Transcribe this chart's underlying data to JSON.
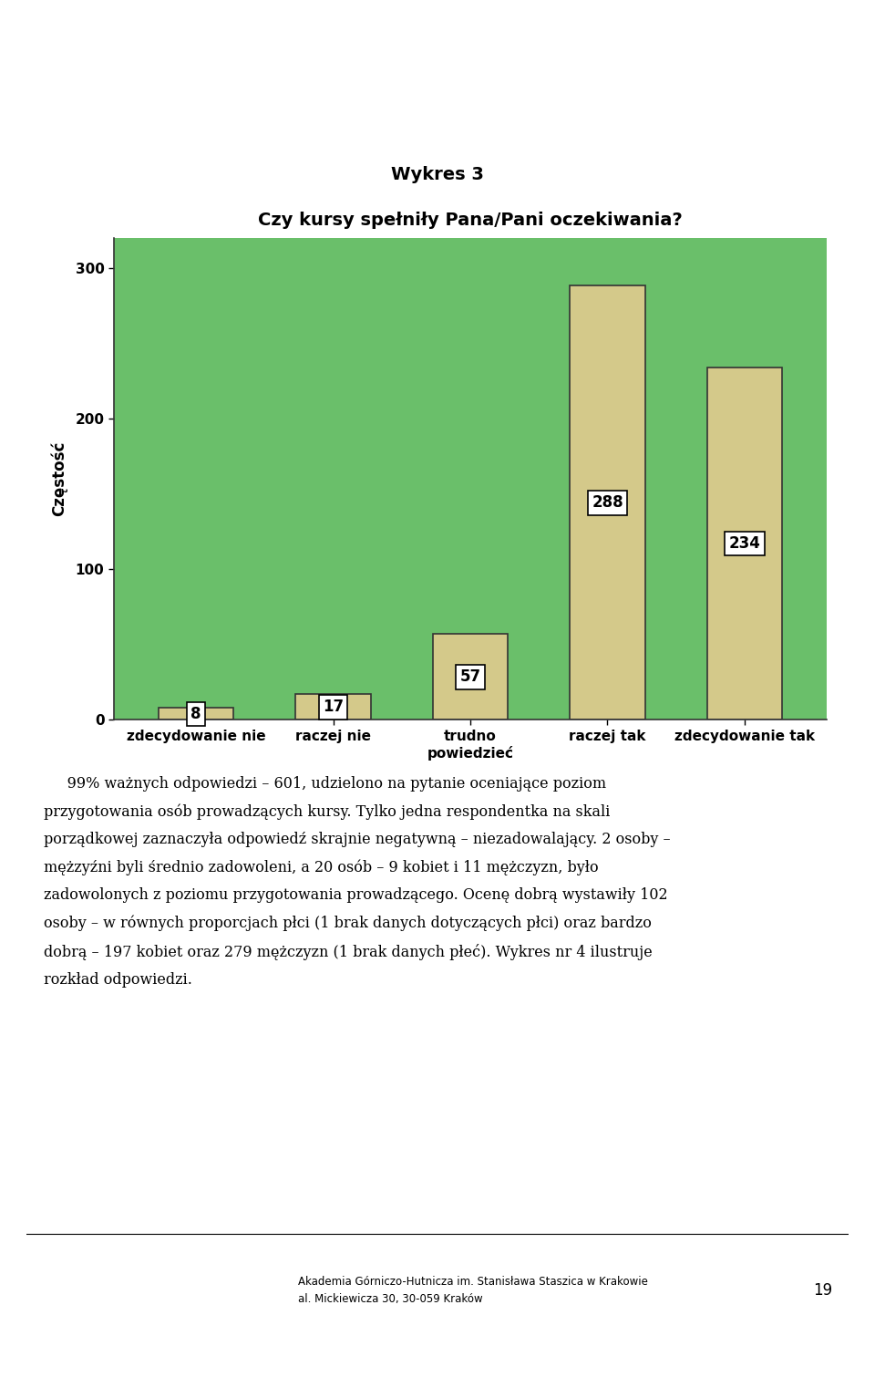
{
  "title_above": "Wykres 3",
  "chart_title": "Czy kursy spełniły Pana/Pani oczekiwania?",
  "categories": [
    "zdecydowanie nie",
    "raczej nie",
    "trudno\npowiedzieć",
    "raczej tak",
    "zdecydowanie tak"
  ],
  "values": [
    8,
    17,
    57,
    288,
    234
  ],
  "bar_color": "#d4c98a",
  "bar_edge_color": "#333333",
  "bg_color": "#6abf6a",
  "ylabel": "Częstość",
  "yticks": [
    0,
    100,
    200,
    300
  ],
  "ylim": [
    0,
    320
  ],
  "label_fontsize": 11,
  "title_fontsize": 14,
  "value_label_fontsize": 12,
  "body_text_lines": [
    "     99% ważnych odpowiedzi – 601, udzielono na pytanie oceniające poziom",
    "przygotowania osób prowadzących kursy. Tylko jedna respondentka na skali",
    "porządkowej zaznaczyła odpowiedź skrajnie negatywną – niezadowalający. 2 osoby –",
    "mężzyźni byli średnio zadowoleni, a 20 osób – 9 kobiet i 11 mężczyzn, było",
    "zadowolonych z poziomu przygotowania prowadzącego. Ocenę dobrą wystawiły 102",
    "osoby – w równych proporcjach płci (1 brak danych dotyczących płci) oraz bardzo",
    "dobrą – 197 kobiet oraz 279 mężczyzn (1 brak danych płeć). Wykres nr 4 ilustruje",
    "rozkład odpowiedzi."
  ],
  "footer_line1": "Akademia Górniczo-Hutnicza im. Stanisława Staszica w Krakowie",
  "footer_line2": "al. Mickiewicza 30, 30-059 Kraków",
  "page_number": "19"
}
